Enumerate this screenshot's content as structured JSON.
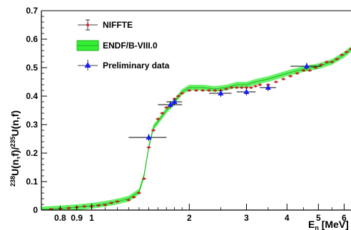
{
  "chart_data": {
    "type": "scatter",
    "title": "",
    "xlabel": "E_n [MeV]",
    "ylabel": "238U(n,f)/235U(n,f)",
    "x_scale": "log",
    "xlim": [
      0.7,
      6.3
    ],
    "ylim": [
      0,
      0.7
    ],
    "x_ticks": [
      0.8,
      0.9,
      1,
      2,
      3,
      4,
      5,
      6
    ],
    "x_tick_labels": [
      "0.8",
      "0.9",
      "1",
      "2",
      "3",
      "4",
      "5",
      "6"
    ],
    "y_ticks": [
      0,
      0.1,
      0.2,
      0.3,
      0.4,
      0.5,
      0.6,
      0.7
    ],
    "y_tick_labels": [
      "0",
      "0.1",
      "0.2",
      "0.3",
      "0.4",
      "0.5",
      "0.6",
      "0.7"
    ],
    "grid": false,
    "legend_position": "top-left",
    "series": [
      {
        "name": "NIFFTE",
        "marker": "circle",
        "color": "#e01e1e",
        "x": [
          0.75,
          0.8,
          0.85,
          0.9,
          0.95,
          1.0,
          1.05,
          1.1,
          1.15,
          1.2,
          1.3,
          1.35,
          1.4,
          1.45,
          1.5,
          1.55,
          1.6,
          1.65,
          1.7,
          1.75,
          1.8,
          1.85,
          1.9,
          2.0,
          2.1,
          2.2,
          2.3,
          2.4,
          2.5,
          2.6,
          2.7,
          2.8,
          2.9,
          3.0,
          3.1,
          3.2,
          3.3,
          3.5,
          3.7,
          3.9,
          4.1,
          4.3,
          4.5,
          4.7,
          4.9,
          5.1,
          5.3,
          5.5,
          5.7,
          5.9,
          6.1,
          6.3
        ],
        "y": [
          0.003,
          0.005,
          0.007,
          0.01,
          0.013,
          0.013,
          0.016,
          0.018,
          0.025,
          0.03,
          0.035,
          0.045,
          0.06,
          0.11,
          0.22,
          0.28,
          0.32,
          0.34,
          0.36,
          0.37,
          0.39,
          0.4,
          0.41,
          0.42,
          0.42,
          0.42,
          0.42,
          0.42,
          0.42,
          0.425,
          0.43,
          0.43,
          0.43,
          0.43,
          0.43,
          0.435,
          0.44,
          0.44,
          0.45,
          0.46,
          0.47,
          0.48,
          0.49,
          0.49,
          0.5,
          0.51,
          0.52,
          0.52,
          0.53,
          0.545,
          0.555,
          0.565
        ]
      },
      {
        "name": "ENDF/B-VIII.0",
        "type": "band",
        "color": "#33ee33",
        "x": [
          0.7,
          0.8,
          0.9,
          1.0,
          1.1,
          1.2,
          1.3,
          1.4,
          1.45,
          1.5,
          1.55,
          1.6,
          1.7,
          1.8,
          1.9,
          2.0,
          2.2,
          2.4,
          2.6,
          2.8,
          3.0,
          3.2,
          3.5,
          4.0,
          4.5,
          5.0,
          5.5,
          6.0,
          6.3
        ],
        "y": [
          0.002,
          0.006,
          0.01,
          0.015,
          0.022,
          0.03,
          0.04,
          0.065,
          0.12,
          0.22,
          0.29,
          0.31,
          0.35,
          0.38,
          0.415,
          0.43,
          0.43,
          0.425,
          0.43,
          0.44,
          0.44,
          0.45,
          0.46,
          0.48,
          0.495,
          0.505,
          0.52,
          0.545,
          0.565
        ],
        "band_halfwidth": 0.01
      },
      {
        "name": "Preliminary data",
        "marker": "triangle",
        "color": "#1a1aff",
        "x": [
          1.5,
          1.75,
          1.8,
          2.5,
          3.0,
          3.5,
          4.6
        ],
        "y": [
          0.255,
          0.37,
          0.38,
          0.41,
          0.415,
          0.43,
          0.505
        ],
        "x_err_lo": [
          0.2,
          0.15,
          0.1,
          0.2,
          0.2,
          0.2,
          0.5
        ],
        "x_err_hi": [
          0.2,
          0.15,
          0.1,
          0.2,
          0.2,
          0.2,
          0.5
        ]
      }
    ]
  }
}
